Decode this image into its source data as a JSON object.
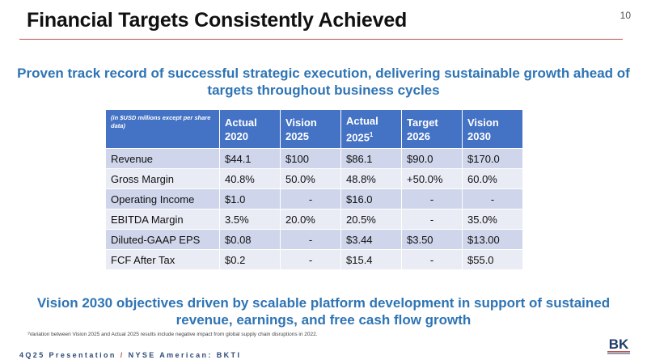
{
  "header": {
    "title": "Financial Targets Consistently Achieved",
    "page_number": "10"
  },
  "subtitle_top": "Proven track record of successful strategic execution, delivering sustainable growth ahead of targets throughout business cycles",
  "table": {
    "note": "(in $USD millions except per share data)",
    "columns": [
      {
        "line1": "Actual",
        "line2": "2020",
        "sup": ""
      },
      {
        "line1": "Vision",
        "line2": "2025",
        "sup": ""
      },
      {
        "line1": "Actual",
        "line2": "2025",
        "sup": "1"
      },
      {
        "line1": "Target",
        "line2": "2026",
        "sup": ""
      },
      {
        "line1": "Vision",
        "line2": "2030",
        "sup": ""
      }
    ],
    "rows": [
      {
        "label": "Revenue",
        "cells": [
          "$44.1",
          "$100",
          "$86.1",
          "$90.0",
          "$170.0"
        ]
      },
      {
        "label": "Gross Margin",
        "cells": [
          "40.8%",
          "50.0%",
          "48.8%",
          "+50.0%",
          "60.0%"
        ]
      },
      {
        "label": "Operating Income",
        "cells": [
          "$1.0",
          "-",
          "$16.0",
          "-",
          "-"
        ]
      },
      {
        "label": "EBITDA Margin",
        "cells": [
          "3.5%",
          "20.0%",
          "20.5%",
          "-",
          "35.0%"
        ]
      },
      {
        "label": "Diluted-GAAP EPS",
        "cells": [
          "$0.08",
          "-",
          "$3.44",
          "$3.50",
          "$13.00"
        ]
      },
      {
        "label": "FCF After Tax",
        "cells": [
          "$0.2",
          "-",
          "$15.4",
          "-",
          "$55.0"
        ]
      }
    ]
  },
  "subtitle_bottom": "Vision 2030 objectives driven by scalable platform development in support of sustained revenue, earnings, and free cash flow growth",
  "footnote": "¹Variation between Vision 2025 and Actual 2025 results include negative impact from global supply chain disruptions in 2022.",
  "footer": {
    "left": "4Q25 Presentation",
    "separator": "/",
    "right": "NYSE American: BKTI"
  },
  "logo": {
    "text": "BK",
    "color": "#1f3a6b",
    "accent": "#c0504d"
  }
}
